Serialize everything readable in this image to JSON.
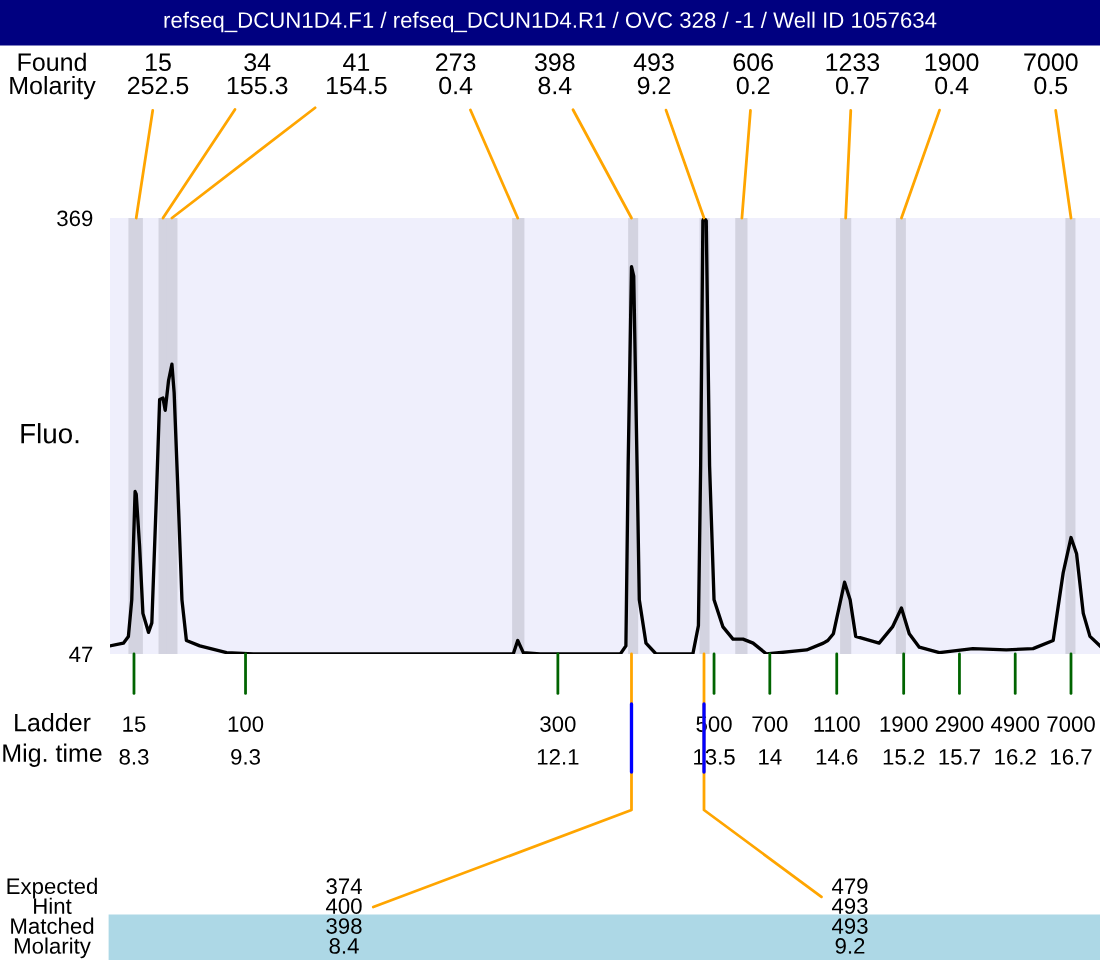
{
  "chart_data": {
    "type": "line",
    "title": "refseq_DCUN1D4.F1 / refseq_DCUN1D4.R1 / OVC 328 / -1 / Well ID 1057634",
    "ylabel": "Fluo.",
    "x": [
      8.085,
      8.205,
      8.25,
      8.28,
      8.31,
      8.32,
      8.35,
      8.38,
      8.43,
      8.46,
      8.5,
      8.53,
      8.56,
      8.58,
      8.61,
      8.64,
      8.66,
      8.69,
      8.73,
      8.77,
      8.89,
      9.13,
      9.37,
      11.7,
      11.74,
      11.79,
      11.94,
      12.66,
      12.71,
      12.73,
      12.76,
      12.78,
      12.81,
      12.83,
      12.89,
      12.98,
      13.31,
      13.36,
      13.38,
      13.4,
      13.41,
      13.43,
      13.46,
      13.5,
      13.58,
      13.67,
      13.76,
      13.85,
      13.97,
      14.33,
      14.48,
      14.52,
      14.57,
      14.67,
      14.72,
      14.77,
      14.98,
      15.1,
      15.18,
      15.25,
      15.34,
      15.52,
      15.82,
      16.12,
      16.36,
      16.54,
      16.63,
      16.7,
      16.75,
      16.81,
      16.87,
      16.96
    ],
    "series": [
      {
        "color": "#000000",
        "values": [
          53,
          55,
          60,
          87,
          167,
          165,
          127,
          77,
          63,
          70,
          161,
          235,
          236,
          227,
          249,
          261,
          240,
          176,
          87,
          57,
          53,
          48,
          47,
          47,
          57,
          48,
          47,
          47,
          53,
          186,
          333,
          326,
          186,
          87,
          55,
          47,
          47,
          68,
          186,
          367,
          369,
          367,
          186,
          87,
          67,
          58,
          58,
          55,
          47,
          50,
          55,
          57,
          62,
          100,
          87,
          60,
          55,
          67,
          81,
          62,
          52,
          48,
          51,
          50,
          51,
          57,
          107,
          133,
          121,
          77,
          60,
          53
        ]
      }
    ],
    "xlim": [
      8.085,
      16.96
    ],
    "ylim": [
      47,
      369
    ],
    "yticks": [
      47,
      369
    ],
    "xticks": [
      8.3,
      9.3,
      12.1,
      13.5,
      14,
      14.6,
      15.2,
      15.7,
      16.2,
      16.7
    ],
    "bands": [
      {
        "axis": "x",
        "from": 8.25,
        "to": 8.38,
        "color": "#d3d3e0"
      },
      {
        "axis": "x",
        "from": 8.52,
        "to": 8.61,
        "color": "#d3d3e0"
      },
      {
        "axis": "x",
        "from": 8.59,
        "to": 8.69,
        "color": "#d3d3e0"
      },
      {
        "axis": "x",
        "from": 11.69,
        "to": 11.8,
        "color": "#d3d3e0"
      },
      {
        "axis": "x",
        "from": 12.73,
        "to": 12.82,
        "color": "#d3d3e0"
      },
      {
        "axis": "x",
        "from": 13.37,
        "to": 13.46,
        "color": "#d3d3e0"
      },
      {
        "axis": "x",
        "from": 13.69,
        "to": 13.8,
        "color": "#d3d3e0"
      },
      {
        "axis": "x",
        "from": 14.63,
        "to": 14.73,
        "color": "#d3d3e0"
      },
      {
        "axis": "x",
        "from": 15.13,
        "to": 15.22,
        "color": "#d3d3e0"
      },
      {
        "axis": "x",
        "from": 16.65,
        "to": 16.74,
        "color": "#d3d3e0"
      }
    ],
    "annotations": [
      "Found\nMolarity",
      "Ladder\nMig. time",
      "Expected\nHint\nMatched\nMolarity",
      {
        "text": "15",
        "x": 8.3,
        "y": 47
      },
      {
        "text": "100",
        "x": 9.3,
        "y": 47
      },
      {
        "text": "300",
        "x": 12.1,
        "y": 47
      },
      {
        "text": "500",
        "x": 13.5,
        "y": 47
      },
      {
        "text": "700",
        "x": 14,
        "y": 47
      },
      {
        "text": "1100",
        "x": 14.6,
        "y": 47
      },
      {
        "text": "1900",
        "x": 15.2,
        "y": 47
      },
      {
        "text": "2900",
        "x": 15.7,
        "y": 47
      },
      {
        "text": "4900",
        "x": 16.2,
        "y": 47
      },
      {
        "text": "7000",
        "x": 16.7,
        "y": 47
      },
      {
        "text": "15\n252.5",
        "x": 8.32,
        "y": 369
      },
      {
        "text": "34\n155.3",
        "x": 8.56,
        "y": 369
      },
      {
        "text": "41\n154.5",
        "x": 8.64,
        "y": 369
      },
      {
        "text": "273\n0.4",
        "x": 11.74,
        "y": 369
      },
      {
        "text": "398\n8.4",
        "x": 12.76,
        "y": 369
      },
      {
        "text": "493\n9.2",
        "x": 13.41,
        "y": 369
      },
      {
        "text": "606\n0.2",
        "x": 13.75,
        "y": 369
      },
      {
        "text": "1233\n0.7",
        "x": 14.68,
        "y": 369
      },
      {
        "text": "1900\n0.4",
        "x": 15.18,
        "y": 369
      },
      {
        "text": "7000\n0.5",
        "x": 16.7,
        "y": 369
      },
      {
        "text": "374\n400\n398\n8.4",
        "x": 12.76,
        "y": 47
      },
      {
        "text": "479\n493\n493\n9.2",
        "x": 13.41,
        "y": 47
      }
    ]
  }
}
